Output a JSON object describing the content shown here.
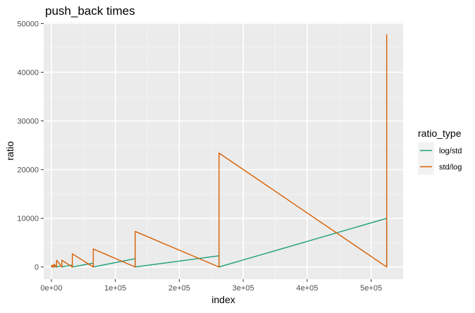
{
  "chart_data": {
    "type": "line",
    "title": "push_back times",
    "xlabel": "index",
    "ylabel": "ratio",
    "xlim": [
      -12000,
      550000
    ],
    "ylim": [
      -2500,
      50200
    ],
    "x_ticks": [
      0,
      100000,
      200000,
      300000,
      400000,
      500000
    ],
    "x_tick_labels": [
      "0e+00",
      "1e+05",
      "2e+05",
      "3e+05",
      "4e+05",
      "5e+05"
    ],
    "y_ticks": [
      0,
      10000,
      20000,
      30000,
      40000,
      50000
    ],
    "y_tick_labels": [
      "0",
      "10000",
      "20000",
      "30000",
      "40000",
      "50000"
    ],
    "grid": true,
    "legend": {
      "title": "ratio_type",
      "position": "right"
    },
    "series": [
      {
        "name": "log/std",
        "color": "#1b9e77",
        "points": [
          [
            0,
            0
          ],
          [
            1024,
            80
          ],
          [
            2048,
            0
          ],
          [
            4096,
            120
          ],
          [
            8192,
            0
          ],
          [
            16384,
            250
          ],
          [
            16384,
            0
          ],
          [
            32768,
            400
          ],
          [
            32768,
            0
          ],
          [
            65536,
            800
          ],
          [
            65536,
            0
          ],
          [
            131072,
            1700
          ],
          [
            131072,
            0
          ],
          [
            262144,
            2300
          ],
          [
            262144,
            0
          ],
          [
            524288,
            10000
          ],
          [
            524288,
            0
          ]
        ]
      },
      {
        "name": "std/log",
        "color": "#d95f02",
        "points": [
          [
            0,
            0
          ],
          [
            1024,
            400
          ],
          [
            2048,
            0
          ],
          [
            2048,
            300
          ],
          [
            4096,
            0
          ],
          [
            4096,
            600
          ],
          [
            8192,
            0
          ],
          [
            8192,
            1400
          ],
          [
            16384,
            0
          ],
          [
            16384,
            1400
          ],
          [
            32768,
            0
          ],
          [
            32768,
            2700
          ],
          [
            65536,
            0
          ],
          [
            65536,
            3700
          ],
          [
            131072,
            0
          ],
          [
            131072,
            7300
          ],
          [
            262144,
            0
          ],
          [
            262144,
            23400
          ],
          [
            524288,
            0
          ],
          [
            524288,
            47800
          ]
        ]
      }
    ]
  }
}
